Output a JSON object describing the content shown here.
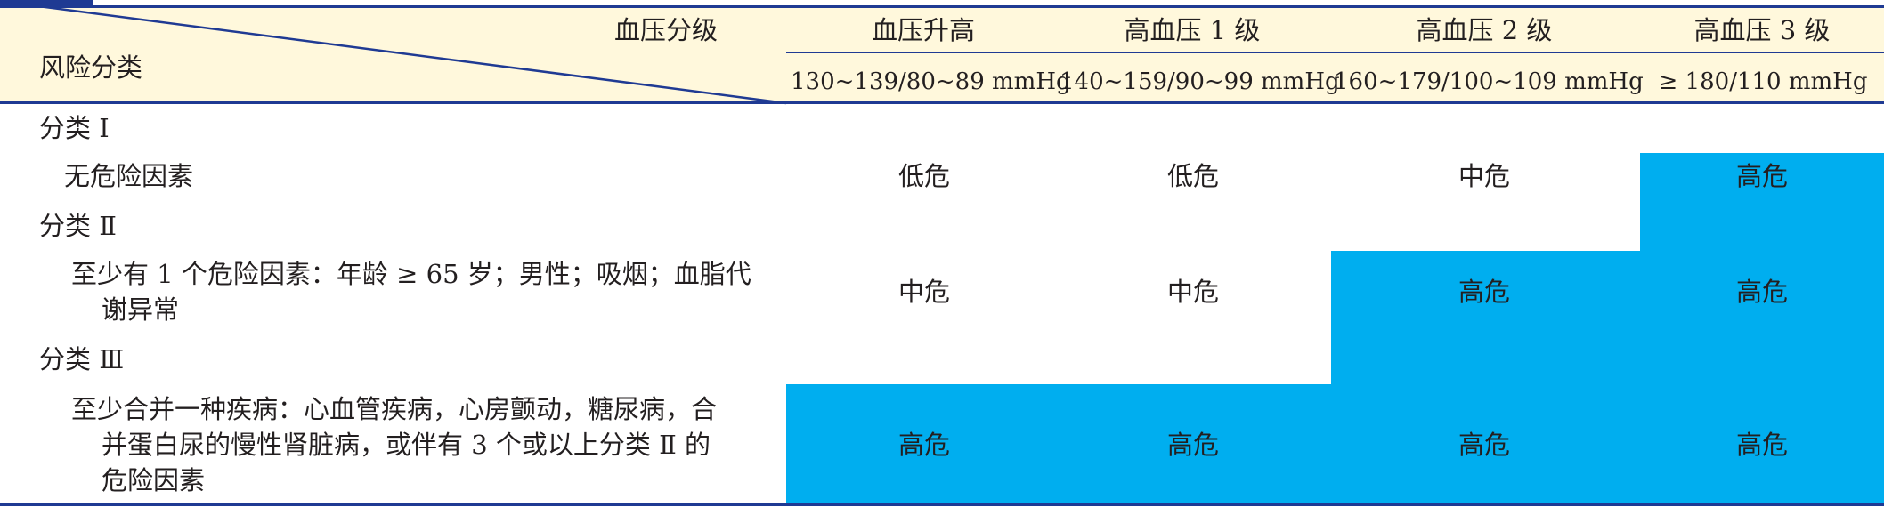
{
  "header": {
    "bp_grade_label": "血压分级",
    "risk_label": "风险分类",
    "columns": [
      {
        "name": "血压升高",
        "range": "130~139/80~89 mmHg"
      },
      {
        "name": "高血压 1 级",
        "range": "140~159/90~99 mmHg"
      },
      {
        "name": "高血压 2 级",
        "range": "160~179/100~109 mmHg"
      },
      {
        "name": "高血压 3 级",
        "range": "≥ 180/110 mmHg"
      }
    ]
  },
  "rows": [
    {
      "category": "分类 Ⅰ",
      "criteria_lines": [
        "无危险因素"
      ],
      "risks": [
        "低危",
        "低危",
        "中危",
        "高危"
      ]
    },
    {
      "category": "分类 Ⅱ",
      "criteria_lines": [
        "至少有 1 个危险因素：年龄 ≥ 65 岁；男性；吸烟；血脂代",
        "谢异常"
      ],
      "risks": [
        "中危",
        "中危",
        "高危",
        "高危"
      ]
    },
    {
      "category": "分类 Ⅲ",
      "criteria_lines": [
        "至少合并一种疾病：心血管疾病，心房颤动，糖尿病，合",
        "并蛋白尿的慢性肾脏病，或伴有 3 个或以上分类 Ⅱ 的",
        "危险因素"
      ],
      "risks": [
        "高危",
        "高危",
        "高危",
        "高危"
      ]
    }
  ],
  "colors": {
    "rule": "#1f3a93",
    "header_background": "#fff8dc",
    "high_risk_fill": "#00aeef"
  }
}
